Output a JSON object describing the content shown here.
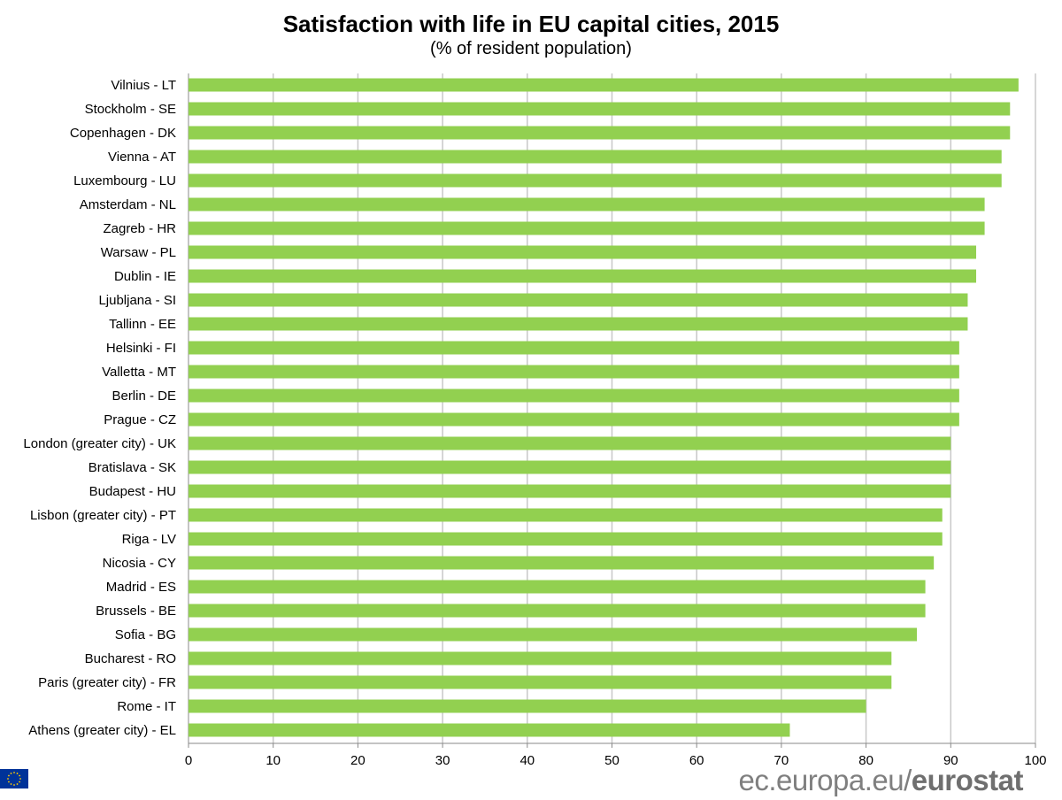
{
  "chart_data": {
    "type": "bar",
    "orientation": "horizontal",
    "title": "Satisfaction with life in EU capital cities, 2015",
    "subtitle": "(% of resident population)",
    "categories": [
      "Vilnius - LT",
      "Stockholm - SE",
      "Copenhagen - DK",
      "Vienna - AT",
      "Luxembourg - LU",
      "Amsterdam - NL",
      "Zagreb - HR",
      "Warsaw - PL",
      "Dublin - IE",
      "Ljubljana - SI",
      "Tallinn - EE",
      "Helsinki - FI",
      "Valletta - MT",
      "Berlin - DE",
      "Prague - CZ",
      "London (greater city) - UK",
      "Bratislava - SK",
      "Budapest - HU",
      "Lisbon (greater city) - PT",
      "Riga - LV",
      "Nicosia - CY",
      "Madrid - ES",
      "Brussels - BE",
      "Sofia - BG",
      "Bucharest - RO",
      "Paris (greater city) - FR",
      "Rome - IT",
      "Athens (greater city) - EL"
    ],
    "values": [
      98,
      97,
      97,
      96,
      96,
      94,
      94,
      93,
      93,
      92,
      92,
      91,
      91,
      91,
      91,
      90,
      90,
      90,
      89,
      89,
      88,
      87,
      87,
      86,
      83,
      83,
      80,
      71
    ],
    "xlim": [
      0,
      100
    ],
    "xticks": [
      0,
      10,
      20,
      30,
      40,
      50,
      60,
      70,
      80,
      90,
      100
    ],
    "grid": "vertical",
    "bar_color": "#92d050",
    "grid_color": "#c8c8c8"
  },
  "footer": {
    "source_prefix": "ec.europa.eu/",
    "source_brand": "eurostat",
    "logo": "eu-flag"
  }
}
